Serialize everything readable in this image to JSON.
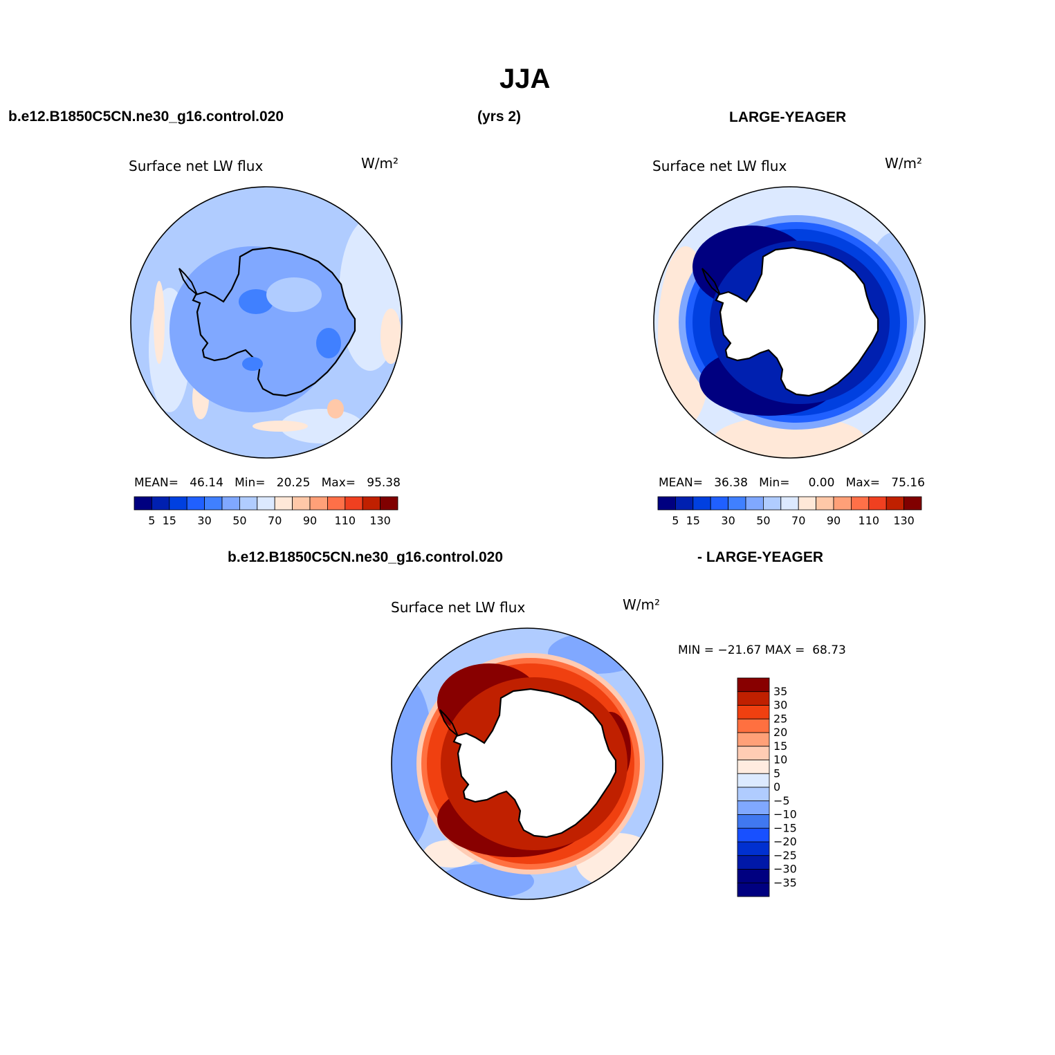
{
  "page": {
    "title": "JJA",
    "case_name_top": "b.e12.B1850C5CN.ne30_g16.control.020",
    "years_label": "(yrs 2)",
    "reference_label": "LARGE-YEAGER",
    "diff_case_label": "b.e12.B1850C5CN.ne30_g16.control.020",
    "diff_reference_label": "- LARGE-YEAGER"
  },
  "colors": {
    "abs_scale": [
      "#000080",
      "#0020b0",
      "#0040e0",
      "#2060ff",
      "#4080ff",
      "#80a8ff",
      "#b0ccff",
      "#dce9ff",
      "#ffe8d8",
      "#ffc8a8",
      "#ffa078",
      "#ff7048",
      "#f04020",
      "#c02000",
      "#800000"
    ],
    "diff_scale": [
      "#000080",
      "#0018a8",
      "#0030d0",
      "#1850ff",
      "#4078f0",
      "#80a8ff",
      "#b0ccff",
      "#dceaff",
      "#ffece0",
      "#ffccb4",
      "#ffa078",
      "#ff7040",
      "#f04010",
      "#c02000",
      "#880000"
    ]
  },
  "chart_data": [
    {
      "type": "heatmap",
      "projection": "south-polar-stereographic",
      "title": "Surface net LW flux",
      "units": "W/m²",
      "stats": {
        "mean_label": "MEAN=",
        "mean": "46.14",
        "min_label": "Min=",
        "min": "20.25",
        "max_label": "Max=",
        "max": "95.38"
      },
      "contour_levels": [
        5,
        10,
        15,
        20,
        30,
        40,
        50,
        60,
        70,
        80,
        90,
        100,
        110,
        120,
        130
      ],
      "colorbar_tick_labels": [
        "5",
        "15",
        "30",
        "50",
        "70",
        "90",
        "110",
        "130"
      ],
      "dominant_values": "30-60 W/m² over ocean and Antarctic continent"
    },
    {
      "type": "heatmap",
      "projection": "south-polar-stereographic",
      "title": "Surface net LW flux",
      "units": "W/m²",
      "stats": {
        "mean_label": "MEAN=",
        "mean": "36.38",
        "min_label": "Min=",
        "min": "0.00",
        "max_label": "Max=",
        "max": "75.16"
      },
      "contour_levels": [
        5,
        10,
        15,
        20,
        30,
        40,
        50,
        60,
        70,
        80,
        90,
        100,
        110,
        120,
        130
      ],
      "colorbar_tick_labels": [
        "5",
        "15",
        "30",
        "50",
        "70",
        "90",
        "110",
        "130"
      ],
      "dominant_values": "below 10 W/m² ring around Antarctica; no data over continent"
    },
    {
      "type": "heatmap",
      "projection": "south-polar-stereographic",
      "title": "Surface net LW flux",
      "units": "W/m²",
      "stats": {
        "min_label": "MIN =",
        "min": "−21.67",
        "max_label": "MAX =",
        "max": "68.73"
      },
      "contour_levels": [
        -35,
        -30,
        -25,
        -20,
        -15,
        -10,
        -5,
        0,
        5,
        10,
        15,
        20,
        25,
        30,
        35
      ],
      "colorbar_tick_labels": [
        "35",
        "30",
        "25",
        "20",
        "15",
        "10",
        "5",
        "0",
        "−5",
        "−10",
        "−15",
        "−20",
        "−25",
        "−30",
        "−35"
      ],
      "dominant_values": "above 35 W/m² ring around Antarctica"
    }
  ]
}
